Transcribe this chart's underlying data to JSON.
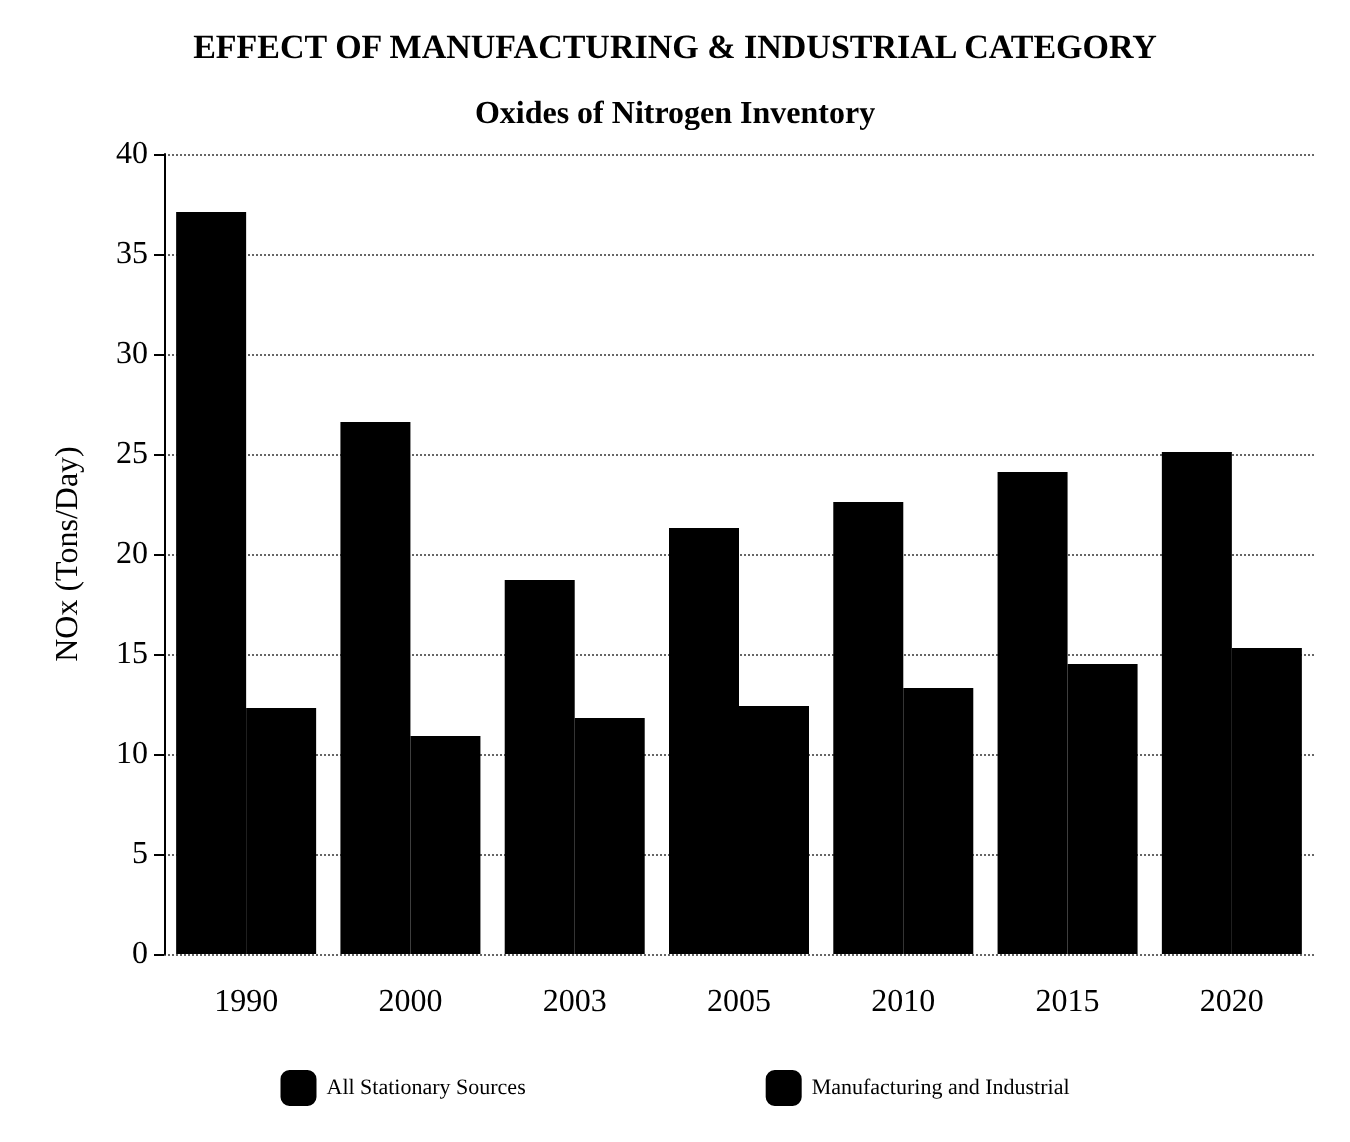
{
  "chart_data": {
    "type": "bar",
    "title": "EFFECT OF MANUFACTURING & INDUSTRIAL CATEGORY",
    "subtitle": "Oxides of Nitrogen Inventory",
    "ylabel": "NOx (Tons/Day)",
    "categories": [
      "1990",
      "2000",
      "2003",
      "2005",
      "2010",
      "2015",
      "2020"
    ],
    "series": [
      {
        "name": "All Stationary Sources",
        "color": "#000000",
        "values": [
          37.1,
          26.6,
          18.7,
          21.3,
          22.6,
          24.1,
          25.1
        ]
      },
      {
        "name": "Manufacturing and Industrial",
        "color": "#000000",
        "values": [
          12.3,
          10.9,
          11.8,
          12.4,
          13.3,
          14.5,
          15.3
        ]
      }
    ],
    "ylim": [
      0,
      40
    ],
    "yticks": [
      0,
      5,
      10,
      15,
      20,
      25,
      30,
      35,
      40
    ],
    "grid": "y",
    "legend": "bottom"
  }
}
